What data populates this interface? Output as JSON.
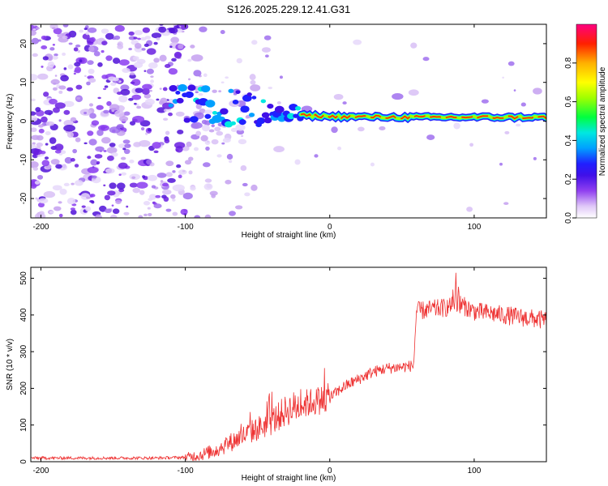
{
  "title": "S126.2025.229.12.41.G31",
  "chart_data": [
    {
      "type": "heatmap",
      "name": "spectrogram",
      "title": "S126.2025.229.12.41.G31",
      "xlabel": "Height of straight line (km)",
      "ylabel": "Frequency (Hz)",
      "xlim": [
        -207,
        150
      ],
      "ylim": [
        -25,
        25
      ],
      "xticks": [
        -200,
        -100,
        0,
        100
      ],
      "yticks": [
        -20,
        -10,
        0,
        10,
        20
      ],
      "colorbar": {
        "label": "Normalized spectral amplitude",
        "range": [
          0,
          1
        ],
        "ticks": [
          0.0,
          0.2,
          0.4,
          0.6,
          0.8
        ],
        "tick_labels": [
          "0.0",
          "0.2",
          "0.4",
          "0.6",
          "0.8"
        ],
        "colormap": [
          "#ffffff",
          "#e8d8f8",
          "#c9a8f0",
          "#8a3cf0",
          "#5a1ed8",
          "#2020ff",
          "#00a8ff",
          "#00e8e8",
          "#00ff40",
          "#a8ff00",
          "#ffff00",
          "#ffb000",
          "#ff4000",
          "#ff0000",
          "#ff0080"
        ]
      },
      "signal": {
        "description_points": [
          {
            "x": -110,
            "freq": 4.5
          },
          {
            "x": -80,
            "freq": 4.0
          },
          {
            "x": -60,
            "freq": 3.0
          },
          {
            "x": -40,
            "freq": 2.0
          },
          {
            "x": -20,
            "freq": 1.5
          },
          {
            "x": 0,
            "freq": 1.2
          },
          {
            "x": 50,
            "freq": 1.0
          },
          {
            "x": 100,
            "freq": 1.0
          },
          {
            "x": 150,
            "freq": 1.0
          }
        ]
      }
    },
    {
      "type": "line",
      "name": "snr",
      "xlabel": "Height of straight line (km)",
      "ylabel": "SNR (10 * v/v)",
      "xlim": [
        -207,
        150
      ],
      "ylim": [
        0,
        530
      ],
      "xticks": [
        -200,
        -100,
        0,
        100
      ],
      "yticks": [
        0,
        100,
        200,
        300,
        400,
        500
      ],
      "series": [
        {
          "name": "SNR",
          "color": "#ee3333",
          "x": [
            -207,
            -180,
            -150,
            -120,
            -100,
            -90,
            -80,
            -70,
            -60,
            -50,
            -40,
            -30,
            -20,
            -10,
            0,
            10,
            20,
            30,
            40,
            50,
            58,
            60,
            70,
            80,
            90,
            100,
            110,
            120,
            130,
            140,
            150
          ],
          "y": [
            10,
            10,
            10,
            10,
            12,
            18,
            30,
            50,
            70,
            90,
            110,
            140,
            155,
            165,
            175,
            205,
            225,
            245,
            255,
            258,
            262,
            410,
            415,
            420,
            430,
            410,
            405,
            400,
            395,
            390,
            385
          ]
        }
      ]
    }
  ]
}
